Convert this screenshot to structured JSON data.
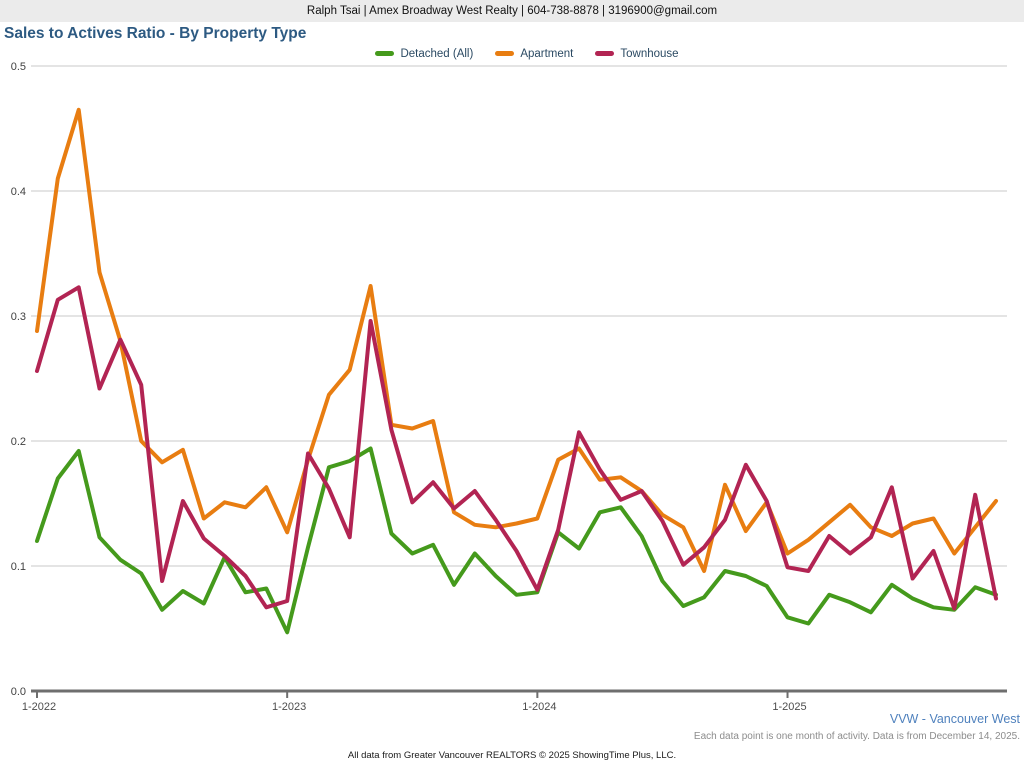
{
  "header": {
    "contact_line": "Ralph Tsai | Amex Broadway West Realty | 604-738-8878 | 3196900@gmail.com"
  },
  "title": "Sales to Actives Ratio - By Property Type",
  "legend": [
    {
      "label": "Detached (All)",
      "color": "#459A1C"
    },
    {
      "label": "Apartment",
      "color": "#E87D11"
    },
    {
      "label": "Townhouse",
      "color": "#B22453"
    }
  ],
  "colors": {
    "title_text": "#2d5a82",
    "legend_text": "#2b4a63",
    "region_label_text": "#4f81bd",
    "grid_line": "#c9c9c9",
    "axis_line": "#6e6e6e"
  },
  "footer": {
    "region_label": "VVW - Vancouver West",
    "note": "Each data point is one month of activity. Data is from December 14, 2025.",
    "attribution": "All data from Greater Vancouver REALTORS © 2025 ShowingTime Plus, LLC."
  },
  "chart_data": {
    "type": "line",
    "title": "Sales to Actives Ratio - By Property Type",
    "xlabel": "",
    "ylabel": "",
    "ylim": [
      0,
      0.5
    ],
    "grid": "horizontal",
    "legend_position": "top-center",
    "y_ticks": {
      "values": [
        0.0,
        0.1,
        0.2,
        0.3,
        0.4,
        0.5
      ],
      "labels": [
        "0.0",
        "0.1",
        "0.2",
        "0.3",
        "0.4",
        "0.5"
      ]
    },
    "x": [
      "1-2022",
      "2-2022",
      "3-2022",
      "4-2022",
      "5-2022",
      "6-2022",
      "7-2022",
      "8-2022",
      "9-2022",
      "10-2022",
      "11-2022",
      "12-2022",
      "1-2023",
      "2-2023",
      "3-2023",
      "4-2023",
      "5-2023",
      "6-2023",
      "7-2023",
      "8-2023",
      "9-2023",
      "10-2023",
      "11-2023",
      "12-2023",
      "1-2024",
      "2-2024",
      "3-2024",
      "4-2024",
      "5-2024",
      "6-2024",
      "7-2024",
      "8-2024",
      "9-2024",
      "10-2024",
      "11-2024",
      "12-2024",
      "1-2025",
      "2-2025",
      "3-2025",
      "4-2025",
      "5-2025",
      "6-2025",
      "7-2025",
      "8-2025",
      "9-2025",
      "10-2025",
      "11-2025"
    ],
    "x_tick_labels": [
      "1-2022",
      "1-2023",
      "1-2024",
      "1-2025"
    ],
    "series": [
      {
        "name": "Detached (All)",
        "color": "#459A1C",
        "values": [
          0.12,
          0.17,
          0.192,
          0.123,
          0.105,
          0.094,
          0.065,
          0.08,
          0.07,
          0.107,
          0.079,
          0.082,
          0.047,
          0.115,
          0.179,
          0.184,
          0.194,
          0.126,
          0.11,
          0.117,
          0.085,
          0.11,
          0.092,
          0.077,
          0.079,
          0.127,
          0.114,
          0.143,
          0.147,
          0.124,
          0.088,
          0.068,
          0.075,
          0.096,
          0.092,
          0.084,
          0.059,
          0.054,
          0.077,
          0.071,
          0.063,
          0.085,
          0.074,
          0.067,
          0.065,
          0.083,
          0.077
        ]
      },
      {
        "name": "Apartment",
        "color": "#E87D11",
        "values": [
          0.288,
          0.41,
          0.465,
          0.335,
          0.28,
          0.2,
          0.183,
          0.193,
          0.138,
          0.151,
          0.147,
          0.163,
          0.127,
          0.185,
          0.237,
          0.257,
          0.324,
          0.213,
          0.21,
          0.216,
          0.143,
          0.133,
          0.131,
          0.134,
          0.138,
          0.185,
          0.194,
          0.169,
          0.171,
          0.16,
          0.141,
          0.131,
          0.096,
          0.165,
          0.128,
          0.151,
          0.11,
          0.121,
          0.135,
          0.149,
          0.131,
          0.124,
          0.134,
          0.138,
          0.11,
          0.131,
          0.152
        ]
      },
      {
        "name": "Townhouse",
        "color": "#B22453",
        "values": [
          0.256,
          0.313,
          0.323,
          0.242,
          0.281,
          0.245,
          0.088,
          0.152,
          0.122,
          0.108,
          0.092,
          0.067,
          0.072,
          0.19,
          0.162,
          0.123,
          0.296,
          0.209,
          0.151,
          0.167,
          0.146,
          0.16,
          0.137,
          0.112,
          0.081,
          0.129,
          0.207,
          0.177,
          0.153,
          0.16,
          0.136,
          0.101,
          0.115,
          0.137,
          0.181,
          0.152,
          0.099,
          0.096,
          0.124,
          0.11,
          0.123,
          0.163,
          0.09,
          0.112,
          0.066,
          0.157,
          0.074
        ]
      }
    ]
  }
}
